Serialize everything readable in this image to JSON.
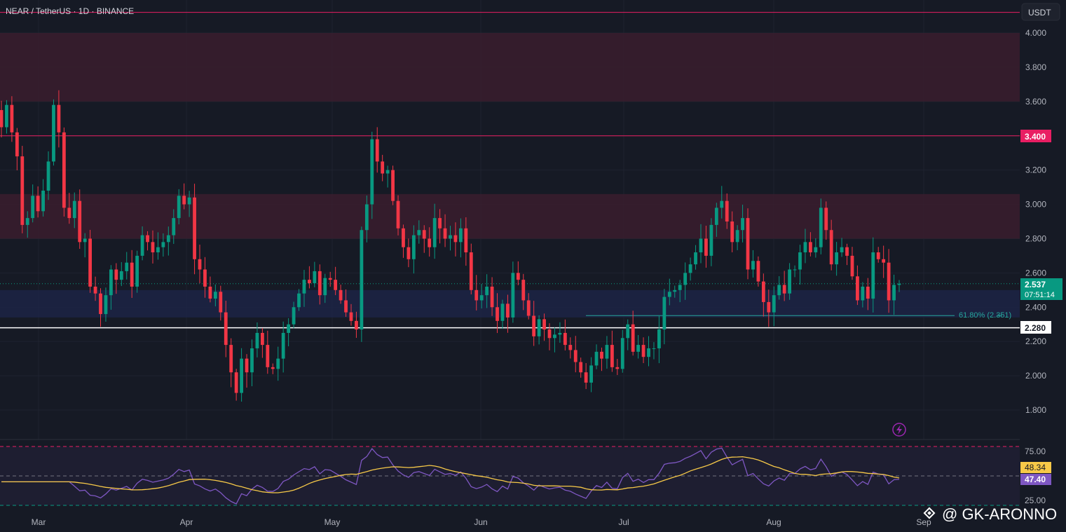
{
  "header": {
    "symbol_line": "NEAR / TetherUS · 1D · BINANCE"
  },
  "price_axis": {
    "currency_button": "USDT",
    "ticks": [
      "4.000",
      "3.800",
      "3.600",
      "3.400",
      "3.200",
      "3.000",
      "2.800",
      "2.600",
      "2.400",
      "2.200",
      "2.000",
      "1.800"
    ],
    "tick_values": [
      4.0,
      3.8,
      3.6,
      3.4,
      3.2,
      3.0,
      2.8,
      2.6,
      2.4,
      2.2,
      2.0,
      1.8
    ],
    "ylim": [
      1.7,
      4.16
    ]
  },
  "labels": {
    "resistance_label": "3.400",
    "support_label": "2.280",
    "current_price": "2.537",
    "countdown": "07:51:14",
    "fib_label": "61.80% (2.351)"
  },
  "colors": {
    "background": "#161a25",
    "bull": "#089981",
    "bear": "#f23645",
    "zone_red": "#3a1d2e",
    "zone_blue": "#1c2545",
    "line_pink": "#e91e63",
    "line_white": "#ffffff",
    "rsi_line": "#7e57c2",
    "rsi_ma": "#f7c948"
  },
  "time_axis": {
    "labels": [
      "Mar",
      "Apr",
      "May",
      "Jun",
      "Jul",
      "Aug",
      "Sep"
    ]
  },
  "rsi": {
    "ticks": [
      "75.00",
      "25.00"
    ],
    "tick_values": [
      75,
      25
    ],
    "ma_label": "48.34",
    "rsi_label": "47.40"
  },
  "watermark": {
    "text": "@ GK-ARONNO",
    "icon": "binance-square-icon"
  },
  "icons": {
    "alert": "lightning-icon"
  },
  "chart_data": {
    "type": "candlestick",
    "title": "NEAR / TetherUS · 1D · BINANCE",
    "y_range": [
      1.7,
      4.16
    ],
    "zones": [
      {
        "from": 3.6,
        "to": 4.0,
        "color": "red"
      },
      {
        "from": 2.8,
        "to": 3.06,
        "color": "red"
      },
      {
        "from": 2.34,
        "to": 2.5,
        "color": "blue"
      }
    ],
    "horizontal_lines": [
      {
        "value": 4.12,
        "color": "pink"
      },
      {
        "value": 3.4,
        "color": "pink"
      },
      {
        "value": 2.28,
        "color": "white"
      },
      {
        "value": 2.351,
        "color": "teal",
        "label": "61.80% (2.351)"
      }
    ],
    "x_labels": [
      "Mar",
      "Apr",
      "May",
      "Jun",
      "Jul",
      "Aug",
      "Sep"
    ],
    "closes": [
      3.45,
      3.58,
      3.42,
      3.28,
      2.88,
      2.92,
      3.05,
      2.96,
      3.08,
      3.25,
      3.58,
      3.42,
      2.98,
      2.92,
      3.02,
      2.78,
      2.8,
      2.52,
      2.48,
      2.36,
      2.47,
      2.62,
      2.56,
      2.61,
      2.66,
      2.52,
      2.7,
      2.82,
      2.78,
      2.72,
      2.75,
      2.78,
      2.82,
      2.92,
      3.05,
      3.0,
      3.04,
      2.68,
      2.62,
      2.52,
      2.45,
      2.49,
      2.37,
      2.18,
      2.02,
      1.9,
      2.1,
      2.02,
      2.16,
      2.25,
      2.18,
      2.05,
      2.04,
      2.1,
      2.25,
      2.3,
      2.4,
      2.48,
      2.56,
      2.54,
      2.61,
      2.47,
      2.57,
      2.56,
      2.5,
      2.44,
      2.37,
      2.32,
      2.27,
      2.85,
      3.0,
      3.38,
      3.25,
      3.18,
      3.2,
      3.02,
      2.86,
      2.75,
      2.68,
      2.82,
      2.85,
      2.8,
      2.75,
      2.92,
      2.86,
      2.8,
      2.82,
      2.78,
      2.86,
      2.72,
      2.5,
      2.44,
      2.47,
      2.52,
      2.4,
      2.32,
      2.42,
      2.34,
      2.6,
      2.56,
      2.44,
      2.35,
      2.23,
      2.33,
      2.27,
      2.22,
      2.24,
      2.25,
      2.18,
      2.15,
      2.08,
      2.02,
      1.96,
      2.06,
      2.14,
      2.1,
      2.18,
      2.05,
      2.04,
      2.22,
      2.3,
      2.14,
      2.18,
      2.11,
      2.16,
      2.16,
      2.27,
      2.46,
      2.49,
      2.5,
      2.53,
      2.6,
      2.65,
      2.72,
      2.8,
      2.7,
      2.88,
      2.98,
      3.02,
      2.9,
      2.78,
      2.85,
      2.92,
      2.62,
      2.67,
      2.55,
      2.43,
      2.37,
      2.47,
      2.53,
      2.48,
      2.62,
      2.62,
      2.72,
      2.78,
      2.72,
      2.75,
      2.98,
      2.85,
      2.65,
      2.72,
      2.75,
      2.7,
      2.58,
      2.44,
      2.52,
      2.45,
      2.72,
      2.68,
      2.66,
      2.44,
      2.53,
      2.537
    ],
    "rsi_ma_label": "48.34",
    "rsi_value_label": "47.40",
    "rsi_ticks": [
      75,
      25
    ]
  }
}
